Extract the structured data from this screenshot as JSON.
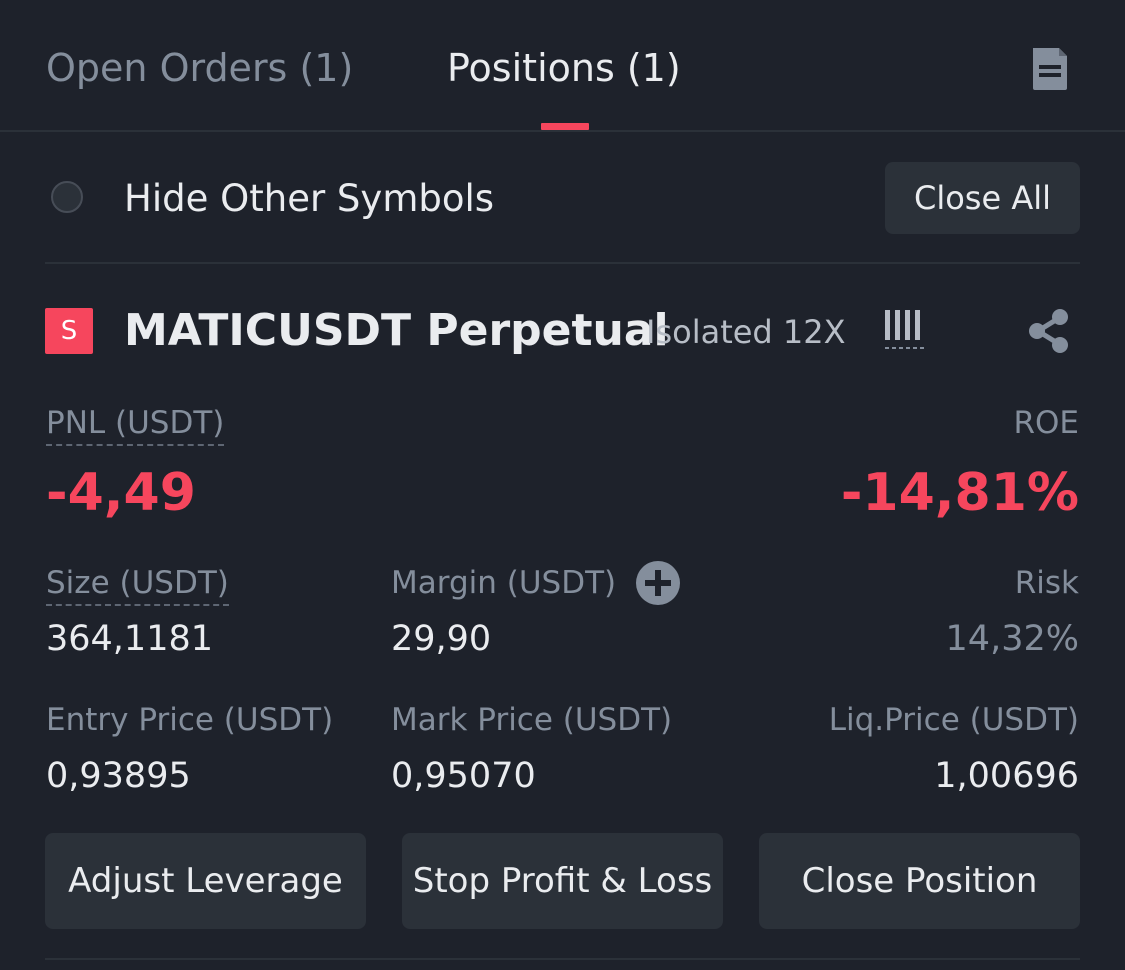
{
  "tabs": [
    {
      "label": "Open Orders (1)",
      "active": false
    },
    {
      "label": "Positions (1)",
      "active": true
    }
  ],
  "header": {
    "doc_icon": "document-icon"
  },
  "filter": {
    "hide_other_symbols_label": "Hide Other Symbols",
    "checked": false,
    "close_all_label": "Close All"
  },
  "position": {
    "side_badge": "S",
    "symbol": "MATICUSDT Perpetual",
    "margin_mode": "Isolated 12X",
    "pnl_label": "PNL (USDT)",
    "pnl_value": "-4,49",
    "roe_label": "ROE",
    "roe_value": "-14,81%",
    "size_label": "Size (USDT)",
    "size_value": "364,1181",
    "margin_label": "Margin (USDT)",
    "margin_value": "29,90",
    "risk_label": "Risk",
    "risk_value": "14,32%",
    "entry_price_label": "Entry Price (USDT)",
    "entry_price_value": "0,93895",
    "mark_price_label": "Mark Price (USDT)",
    "mark_price_value": "0,95070",
    "liq_price_label": "Liq.Price (USDT)",
    "liq_price_value": "1,00696"
  },
  "actions": {
    "adjust_leverage": "Adjust Leverage",
    "stop_profit_loss": "Stop Profit & Loss",
    "close_position": "Close Position"
  },
  "colors": {
    "background": "#1e222b",
    "negative": "#f6465d",
    "button": "#2b3139",
    "muted_text": "#848e9c",
    "primary_text": "#eaecef"
  }
}
